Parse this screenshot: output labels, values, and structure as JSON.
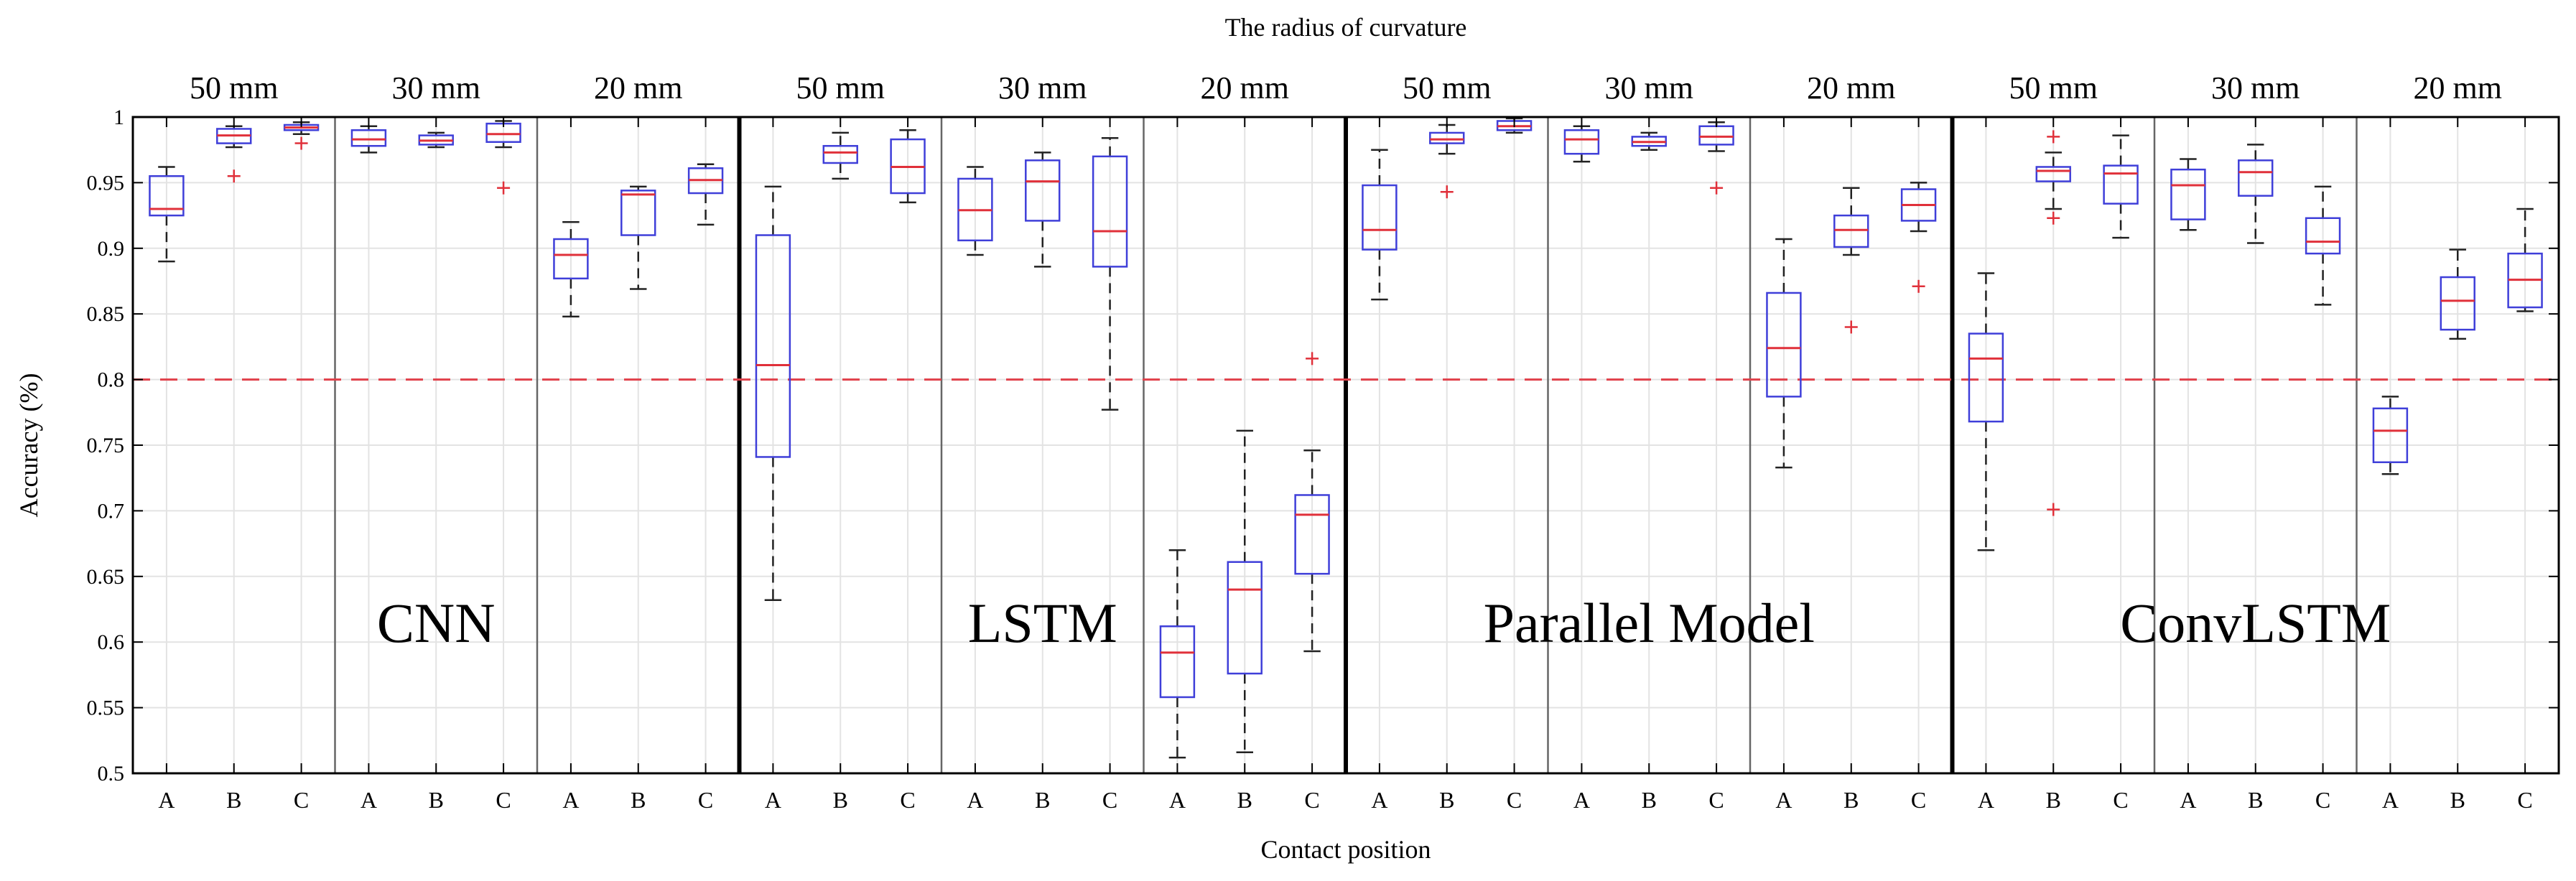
{
  "chart_data": {
    "type": "box",
    "title": "The radius of curvature",
    "xlabel": "Contact position",
    "ylabel": "Accuracy (%)",
    "ylim": [
      0.5,
      1.0
    ],
    "yticks": [
      0.5,
      0.55,
      0.6,
      0.65,
      0.7,
      0.75,
      0.8,
      0.85,
      0.9,
      0.95,
      1
    ],
    "ytick_labels": [
      "0.5",
      "0.55",
      "0.6",
      "0.65",
      "0.7",
      "0.75",
      "0.8",
      "0.85",
      "0.9",
      "0.95",
      "1"
    ],
    "grid": true,
    "reference_line": 0.8,
    "colors": {
      "box": "#3f3fd9",
      "median": "#e0303a",
      "outlier": "#e0303a",
      "whisker": "#222222",
      "reference": "#e0404a",
      "grid": "#e3e3e3"
    },
    "positions": [
      "A",
      "B",
      "C"
    ],
    "models": [
      {
        "name": "CNN",
        "groups": [
          {
            "radius": "50 mm",
            "boxes": [
              {
                "q1": 0.925,
                "median": 0.93,
                "q3": 0.955,
                "min": 0.89,
                "max": 0.962,
                "outliers": []
              },
              {
                "q1": 0.98,
                "median": 0.986,
                "q3": 0.991,
                "min": 0.977,
                "max": 0.993,
                "outliers": [
                  0.955
                ]
              },
              {
                "q1": 0.99,
                "median": 0.992,
                "q3": 0.994,
                "min": 0.987,
                "max": 0.996,
                "outliers": [
                  0.98
                ]
              }
            ]
          },
          {
            "radius": "30 mm",
            "boxes": [
              {
                "q1": 0.978,
                "median": 0.983,
                "q3": 0.99,
                "min": 0.973,
                "max": 0.993,
                "outliers": []
              },
              {
                "q1": 0.979,
                "median": 0.982,
                "q3": 0.986,
                "min": 0.977,
                "max": 0.988,
                "outliers": []
              },
              {
                "q1": 0.981,
                "median": 0.987,
                "q3": 0.995,
                "min": 0.977,
                "max": 0.997,
                "outliers": [
                  0.946
                ]
              }
            ]
          },
          {
            "radius": "20 mm",
            "boxes": [
              {
                "q1": 0.877,
                "median": 0.895,
                "q3": 0.907,
                "min": 0.848,
                "max": 0.92,
                "outliers": []
              },
              {
                "q1": 0.91,
                "median": 0.941,
                "q3": 0.944,
                "min": 0.869,
                "max": 0.947,
                "outliers": []
              },
              {
                "q1": 0.942,
                "median": 0.952,
                "q3": 0.961,
                "min": 0.918,
                "max": 0.964,
                "outliers": []
              }
            ]
          }
        ]
      },
      {
        "name": "LSTM",
        "groups": [
          {
            "radius": "50 mm",
            "boxes": [
              {
                "q1": 0.741,
                "median": 0.811,
                "q3": 0.91,
                "min": 0.632,
                "max": 0.947,
                "outliers": []
              },
              {
                "q1": 0.965,
                "median": 0.973,
                "q3": 0.978,
                "min": 0.953,
                "max": 0.988,
                "outliers": []
              },
              {
                "q1": 0.942,
                "median": 0.962,
                "q3": 0.983,
                "min": 0.935,
                "max": 0.99,
                "outliers": []
              }
            ]
          },
          {
            "radius": "30 mm",
            "boxes": [
              {
                "q1": 0.906,
                "median": 0.929,
                "q3": 0.953,
                "min": 0.895,
                "max": 0.962,
                "outliers": []
              },
              {
                "q1": 0.921,
                "median": 0.951,
                "q3": 0.967,
                "min": 0.886,
                "max": 0.973,
                "outliers": []
              },
              {
                "q1": 0.886,
                "median": 0.913,
                "q3": 0.97,
                "min": 0.777,
                "max": 0.984,
                "outliers": []
              }
            ]
          },
          {
            "radius": "20 mm",
            "boxes": [
              {
                "q1": 0.558,
                "median": 0.592,
                "q3": 0.612,
                "min": 0.512,
                "max": 0.67,
                "outliers": []
              },
              {
                "q1": 0.576,
                "median": 0.64,
                "q3": 0.661,
                "min": 0.516,
                "max": 0.761,
                "outliers": []
              },
              {
                "q1": 0.652,
                "median": 0.697,
                "q3": 0.712,
                "min": 0.593,
                "max": 0.746,
                "outliers": [
                  0.816
                ]
              }
            ]
          }
        ]
      },
      {
        "name": "Parallel Model",
        "groups": [
          {
            "radius": "50 mm",
            "boxes": [
              {
                "q1": 0.899,
                "median": 0.914,
                "q3": 0.948,
                "min": 0.861,
                "max": 0.975,
                "outliers": []
              },
              {
                "q1": 0.98,
                "median": 0.983,
                "q3": 0.988,
                "min": 0.972,
                "max": 0.994,
                "outliers": [
                  0.943
                ]
              },
              {
                "q1": 0.99,
                "median": 0.993,
                "q3": 0.997,
                "min": 0.988,
                "max": 0.999,
                "outliers": []
              }
            ]
          },
          {
            "radius": "30 mm",
            "boxes": [
              {
                "q1": 0.972,
                "median": 0.983,
                "q3": 0.99,
                "min": 0.966,
                "max": 0.993,
                "outliers": []
              },
              {
                "q1": 0.978,
                "median": 0.981,
                "q3": 0.985,
                "min": 0.975,
                "max": 0.988,
                "outliers": []
              },
              {
                "q1": 0.979,
                "median": 0.985,
                "q3": 0.993,
                "min": 0.974,
                "max": 0.996,
                "outliers": [
                  0.946
                ]
              }
            ]
          },
          {
            "radius": "20 mm",
            "boxes": [
              {
                "q1": 0.787,
                "median": 0.824,
                "q3": 0.866,
                "min": 0.733,
                "max": 0.907,
                "outliers": []
              },
              {
                "q1": 0.901,
                "median": 0.914,
                "q3": 0.925,
                "min": 0.895,
                "max": 0.946,
                "outliers": [
                  0.84
                ]
              },
              {
                "q1": 0.921,
                "median": 0.933,
                "q3": 0.945,
                "min": 0.913,
                "max": 0.95,
                "outliers": [
                  0.871
                ]
              }
            ]
          }
        ]
      },
      {
        "name": "ConvLSTM",
        "groups": [
          {
            "radius": "50 mm",
            "boxes": [
              {
                "q1": 0.768,
                "median": 0.816,
                "q3": 0.835,
                "min": 0.67,
                "max": 0.881,
                "outliers": []
              },
              {
                "q1": 0.951,
                "median": 0.959,
                "q3": 0.962,
                "min": 0.93,
                "max": 0.973,
                "outliers": [
                  0.923,
                  0.985,
                  0.701
                ]
              },
              {
                "q1": 0.934,
                "median": 0.957,
                "q3": 0.963,
                "min": 0.908,
                "max": 0.986,
                "outliers": []
              }
            ]
          },
          {
            "radius": "30 mm",
            "boxes": [
              {
                "q1": 0.922,
                "median": 0.948,
                "q3": 0.96,
                "min": 0.914,
                "max": 0.968,
                "outliers": []
              },
              {
                "q1": 0.94,
                "median": 0.958,
                "q3": 0.967,
                "min": 0.904,
                "max": 0.979,
                "outliers": []
              },
              {
                "q1": 0.896,
                "median": 0.905,
                "q3": 0.923,
                "min": 0.857,
                "max": 0.947,
                "outliers": []
              }
            ]
          },
          {
            "radius": "20 mm",
            "boxes": [
              {
                "q1": 0.737,
                "median": 0.761,
                "q3": 0.778,
                "min": 0.728,
                "max": 0.787,
                "outliers": []
              },
              {
                "q1": 0.838,
                "median": 0.86,
                "q3": 0.878,
                "min": 0.831,
                "max": 0.899,
                "outliers": []
              },
              {
                "q1": 0.855,
                "median": 0.876,
                "q3": 0.896,
                "min": 0.852,
                "max": 0.93,
                "outliers": []
              }
            ]
          }
        ]
      }
    ]
  }
}
